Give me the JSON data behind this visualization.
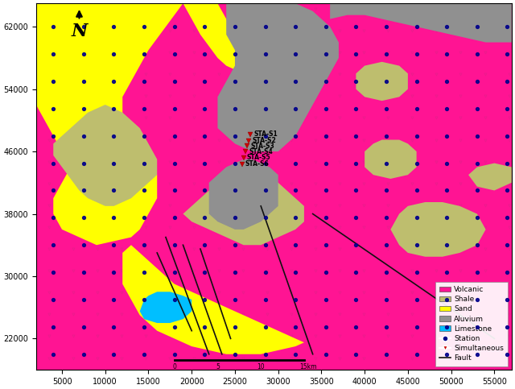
{
  "xlim": [
    2000,
    57000
  ],
  "ylim": [
    18000,
    65000
  ],
  "xlabel_ticks": [
    5000,
    10000,
    15000,
    20000,
    25000,
    30000,
    35000,
    40000,
    45000,
    50000,
    55000
  ],
  "ylabel_ticks": [
    22000,
    30000,
    38000,
    46000,
    54000,
    62000
  ],
  "colors": {
    "volcanic": "#FF1493",
    "shale": "#BEBE6E",
    "sand": "#FFFF00",
    "alluvium": "#909090",
    "limestone": "#00BFFF",
    "station": "#00008B",
    "simultaneous": "#CC0000",
    "fault": "#111111"
  },
  "stations": {
    "x": [
      26800,
      26600,
      26400,
      26200,
      26000,
      25800
    ],
    "y": [
      48200,
      47400,
      46700,
      46000,
      45200,
      44400
    ],
    "labels": [
      "STA-S1",
      "STA-S2",
      "STA-S3",
      "STA-S4",
      "STA-S5",
      "STA-S6"
    ]
  },
  "fault_lines": [
    [
      [
        28000,
        39000
      ],
      [
        34000,
        20000
      ]
    ],
    [
      [
        34000,
        38000
      ],
      [
        55000,
        22000
      ]
    ],
    [
      [
        17000,
        35000
      ],
      [
        22000,
        20000
      ]
    ],
    [
      [
        19000,
        34000
      ],
      [
        23500,
        20000
      ]
    ],
    [
      [
        21000,
        33500
      ],
      [
        24500,
        22000
      ]
    ],
    [
      [
        16000,
        33000
      ],
      [
        20000,
        23000
      ]
    ]
  ],
  "scale_bar": {
    "x0": 18000,
    "x1": 33000,
    "y": 19200,
    "labels": [
      [
        "0",
        18000
      ],
      [
        "5",
        23000
      ],
      [
        "10",
        28000
      ],
      [
        "15km",
        33500
      ]
    ]
  }
}
